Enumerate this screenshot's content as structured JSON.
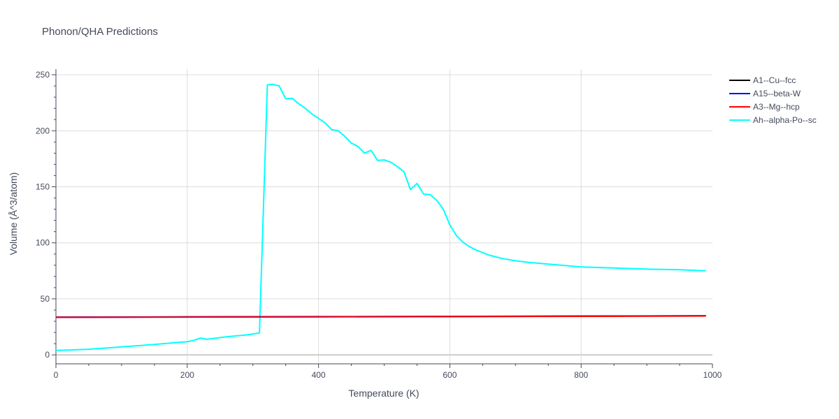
{
  "chart_data": {
    "type": "line",
    "title": "Phonon/QHA Predictions",
    "xlabel": "Temperature (K)",
    "ylabel": "Volume (Å^3/atom)",
    "xlim": [
      0,
      1000
    ],
    "ylim": [
      -8,
      255
    ],
    "x_ticks": [
      0,
      200,
      400,
      600,
      800,
      1000
    ],
    "y_ticks": [
      0,
      50,
      100,
      150,
      200,
      250
    ],
    "grid": true,
    "legend_position": "top-right",
    "series": [
      {
        "name": "A1--Cu--fcc",
        "color": "#000000",
        "x": [
          0,
          200,
          400,
          600,
          800,
          990
        ],
        "values": [
          33.6,
          33.8,
          34.0,
          34.2,
          34.5,
          34.8
        ]
      },
      {
        "name": "A15--beta-W",
        "color": "#0000ff",
        "x": [
          0,
          200,
          400,
          600,
          800,
          990
        ],
        "values": [
          33.7,
          33.9,
          34.1,
          34.3,
          34.6,
          34.9
        ]
      },
      {
        "name": "A3--Mg--hcp",
        "color": "#ff0000",
        "x": [
          0,
          200,
          400,
          600,
          800,
          990
        ],
        "values": [
          33.5,
          33.7,
          33.9,
          34.1,
          34.4,
          34.7
        ]
      },
      {
        "name": "Ah--alpha-Po--sc",
        "color": "#00ffff",
        "x": [
          0,
          20,
          50,
          80,
          110,
          130,
          140,
          150,
          170,
          190,
          200,
          210,
          220,
          230,
          260,
          290,
          300,
          310,
          322,
          330,
          340,
          350,
          360,
          370,
          380,
          390,
          400,
          410,
          420,
          430,
          440,
          450,
          460,
          470,
          480,
          490,
          500,
          510,
          520,
          530,
          540,
          550,
          560,
          570,
          580,
          590,
          600,
          610,
          620,
          630,
          640,
          660,
          680,
          700,
          720,
          740,
          760,
          800,
          850,
          900,
          950,
          990
        ],
        "values": [
          4,
          4.3,
          5,
          6.3,
          7.6,
          8.3,
          8.9,
          9.3,
          10.3,
          11.3,
          11.7,
          13,
          15,
          13.9,
          16.2,
          17.8,
          18.7,
          19.6,
          241,
          241.5,
          240,
          228.5,
          229,
          224,
          220,
          215,
          211,
          207,
          201,
          200,
          195,
          189,
          186,
          180,
          182.5,
          173.5,
          174,
          172,
          168,
          163.5,
          147.5,
          153,
          143.5,
          143,
          138,
          130,
          116,
          106.5,
          100.5,
          96.5,
          93.5,
          89,
          86,
          84,
          82.5,
          81.5,
          80.5,
          78.5,
          77.5,
          76.5,
          76,
          75
        ]
      }
    ]
  }
}
